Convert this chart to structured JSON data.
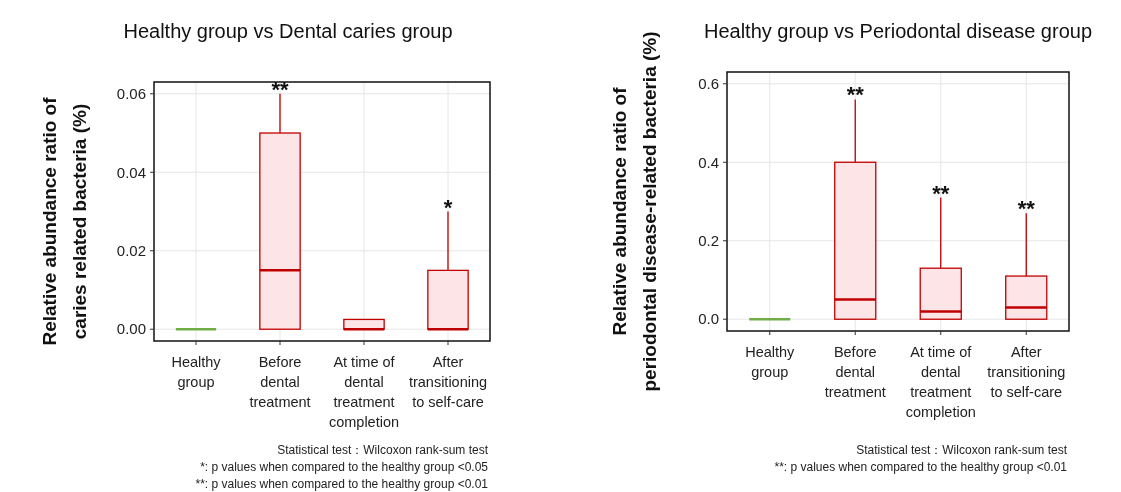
{
  "chart_data": [
    {
      "type": "box",
      "title": "Healthy group vs Dental caries group",
      "ylabel": "Relative abundance ratio of\ncaries related bacteria (%)",
      "categories": [
        "Healthy\ngroup",
        "Before\ndental\ntreatment",
        "At time of\ndental\ntreatment\ncompletion",
        "After\ntransitioning\nto self-care"
      ],
      "colors": [
        "#70ad47",
        "#c00000",
        "#c00000",
        "#c00000"
      ],
      "boxes": [
        {
          "low": 0,
          "q1": 0,
          "median": 0,
          "q3": 0,
          "high": 0
        },
        {
          "low": 0,
          "q1": 0,
          "median": 0.015,
          "q3": 0.05,
          "high": 0.06
        },
        {
          "low": 0,
          "q1": 0,
          "median": 0,
          "q3": 0.0025,
          "high": 0.0025
        },
        {
          "low": 0,
          "q1": 0,
          "median": 0,
          "q3": 0.015,
          "high": 0.03
        }
      ],
      "ylim": [
        -0.003,
        0.063
      ],
      "yticks": [
        {
          "value": 0,
          "label": "0.00"
        },
        {
          "value": 0.02,
          "label": "0.02"
        },
        {
          "value": 0.04,
          "label": "0.04"
        },
        {
          "value": 0.06,
          "label": "0.06"
        }
      ],
      "grid": true,
      "annotations": [
        {
          "text": "**",
          "x": "Before\ndental\ntreatment",
          "y": 0.06
        },
        {
          "text": "*",
          "x": "After\ntransitioning\nto self-care",
          "y": 0.03
        },
        "Statistical test：Wilcoxon rank-sum test",
        "*: p values when compared to the healthy group <0.05",
        "**: p values when compared to the healthy group <0.01"
      ]
    },
    {
      "type": "box",
      "title": "Healthy group vs Periodontal disease group",
      "ylabel": "Relative abundance ratio of\nperiodontal disease-related bacteria (%)",
      "categories": [
        "Healthy\ngroup",
        "Before\ndental\ntreatment",
        "At time of\ndental\ntreatment\ncompletion",
        "After\ntransitioning\nto self-care"
      ],
      "colors": [
        "#70ad47",
        "#c00000",
        "#c00000",
        "#c00000"
      ],
      "boxes": [
        {
          "low": 0,
          "q1": 0,
          "median": 0,
          "q3": 0,
          "high": 0
        },
        {
          "low": 0,
          "q1": 0,
          "median": 0.05,
          "q3": 0.4,
          "high": 0.56
        },
        {
          "low": 0,
          "q1": 0,
          "median": 0.02,
          "q3": 0.13,
          "high": 0.31
        },
        {
          "low": 0,
          "q1": 0,
          "median": 0.03,
          "q3": 0.11,
          "high": 0.27
        }
      ],
      "ylim": [
        -0.03,
        0.63
      ],
      "yticks": [
        {
          "value": 0,
          "label": "0.0"
        },
        {
          "value": 0.2,
          "label": "0.2"
        },
        {
          "value": 0.4,
          "label": "0.4"
        },
        {
          "value": 0.6,
          "label": "0.6"
        }
      ],
      "grid": true,
      "annotations": [
        {
          "text": "**",
          "x": "Before\ndental\ntreatment",
          "y": 0.56
        },
        {
          "text": "**",
          "x": "At time of\ndental\ntreatment\ncompletion",
          "y": 0.31
        },
        {
          "text": "**",
          "x": "After\ntransitioning\nto self-care",
          "y": 0.27
        },
        "Statistical test：Wilcoxon rank-sum test",
        "**: p values when compared to the healthy group <0.01"
      ]
    }
  ]
}
